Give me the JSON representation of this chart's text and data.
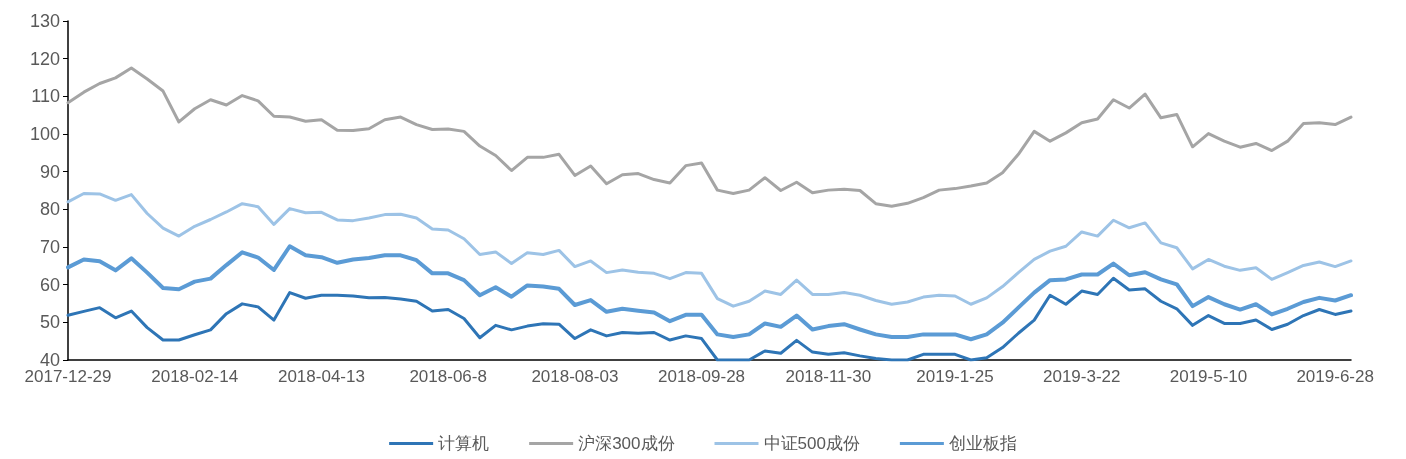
{
  "chart_data": {
    "type": "line",
    "categories": [
      "2017-12-29",
      null,
      null,
      null,
      null,
      null,
      null,
      null,
      "2018-02-14",
      null,
      null,
      null,
      null,
      null,
      null,
      null,
      "2018-04-13",
      null,
      null,
      null,
      null,
      null,
      null,
      null,
      "2018-06-8",
      null,
      null,
      null,
      null,
      null,
      null,
      null,
      "2018-08-03",
      null,
      null,
      null,
      null,
      null,
      null,
      null,
      "2018-09-28",
      null,
      null,
      null,
      null,
      null,
      null,
      null,
      "2018-11-30",
      null,
      null,
      null,
      null,
      null,
      null,
      null,
      "2019-1-25",
      null,
      null,
      null,
      null,
      null,
      null,
      null,
      "2019-3-22",
      null,
      null,
      null,
      null,
      null,
      null,
      null,
      "2019-5-10",
      null,
      null,
      null,
      null,
      null,
      null,
      null,
      "2019-6-28",
      null
    ],
    "series": [
      {
        "name": "计算机",
        "color": "#2e75b6",
        "values": [
          51.9,
          52.9,
          53.9,
          51.2,
          53.0,
          48.6,
          45.3,
          45.3,
          46.7,
          48.0,
          52.3,
          54.9,
          54.1,
          50.6,
          57.9,
          56.4,
          57.2,
          57.2,
          57.0,
          56.5,
          56.6,
          56.2,
          55.6,
          53.0,
          53.4,
          51.0,
          45.9,
          49.2,
          48.0,
          49.0,
          49.6,
          49.5,
          45.7,
          48.0,
          46.4,
          47.3,
          47.1,
          47.3,
          45.3,
          46.4,
          45.7,
          40,
          40,
          40,
          42.4,
          41.8,
          45.2,
          42.1,
          41.5,
          41.9,
          41.1,
          40.4,
          40,
          40,
          41.5,
          41.5,
          41.5,
          40,
          40.6,
          43.3,
          47.1,
          50.6,
          57.2,
          54.8,
          58.3,
          57.4,
          61.7,
          58.6,
          58.9,
          55.6,
          53.6,
          49.2,
          51.8,
          49.7,
          49.7,
          50.6,
          48.1,
          49.5,
          51.8,
          53.4,
          52.1,
          53.0
        ]
      },
      {
        "name": "沪深300成份",
        "color": "#a5a5a5",
        "values": [
          108.3,
          111.1,
          113.4,
          114.9,
          117.5,
          114.6,
          111.4,
          103.2,
          106.7,
          109.1,
          107.7,
          110.2,
          108.8,
          104.7,
          104.5,
          103.4,
          103.8,
          101.0,
          100.9,
          101.4,
          103.8,
          104.5,
          102.5,
          101.2,
          101.3,
          100.7,
          96.8,
          94.3,
          90.3,
          93.8,
          93.8,
          94.6,
          89.0,
          91.5,
          86.8,
          89.2,
          89.5,
          87.9,
          87.0,
          91.6,
          92.3,
          85.1,
          84.2,
          85.1,
          88.4,
          85.0,
          87.2,
          84.4,
          85.1,
          85.3,
          85.0,
          81.5,
          80.8,
          81.6,
          83.1,
          85.1,
          85.5,
          86.2,
          87.0,
          89.7,
          94.6,
          100.7,
          98.1,
          100.3,
          103.0,
          104.0,
          109.1,
          106.9,
          110.6,
          104.3,
          105.2,
          96.6,
          100.1,
          98.1,
          96.5,
          97.5,
          95.6,
          98.1,
          102.8,
          103.0,
          102.5,
          104.5
        ]
      },
      {
        "name": "中证500成份",
        "color": "#9dc3e6",
        "values": [
          82.0,
          84.2,
          84.1,
          82.4,
          83.9,
          78.9,
          75.0,
          72.9,
          75.5,
          77.3,
          79.3,
          81.5,
          80.7,
          76.0,
          80.2,
          79.1,
          79.2,
          77.2,
          77.0,
          77.7,
          78.6,
          78.7,
          77.7,
          74.8,
          74.5,
          72.2,
          68.0,
          68.7,
          65.6,
          68.5,
          68.0,
          69.1,
          64.8,
          66.3,
          63.2,
          63.9,
          63.3,
          63.0,
          61.6,
          63.2,
          63.0,
          56.3,
          54.3,
          55.6,
          58.3,
          57.4,
          61.2,
          57.4,
          57.4,
          57.9,
          57.2,
          55.8,
          54.8,
          55.4,
          56.7,
          57.2,
          57.0,
          54.8,
          56.5,
          59.5,
          63.2,
          66.7,
          68.9,
          70.2,
          74.0,
          72.9,
          77.1,
          75.1,
          76.4,
          71.1,
          69.8,
          64.2,
          66.7,
          64.9,
          63.8,
          64.5,
          61.4,
          63.2,
          65.1,
          66.0,
          64.8,
          66.3
        ]
      },
      {
        "name": "创业板指",
        "color": "#5b9bd5",
        "values": [
          64.6,
          66.7,
          66.2,
          63.8,
          67.0,
          63.2,
          59.1,
          58.8,
          60.8,
          61.6,
          65.2,
          68.6,
          67.2,
          63.9,
          70.2,
          67.8,
          67.3,
          65.8,
          66.7,
          67.1,
          67.8,
          67.8,
          66.5,
          63.0,
          63.0,
          61.2,
          57.2,
          59.3,
          56.8,
          59.8,
          59.5,
          58.9,
          54.6,
          55.9,
          52.8,
          53.6,
          53.1,
          52.6,
          50.3,
          52.0,
          52.0,
          46.8,
          46.1,
          46.8,
          49.7,
          48.8,
          51.8,
          48.1,
          49.0,
          49.5,
          48.1,
          46.8,
          46.1,
          46.1,
          46.8,
          46.8,
          46.8,
          45.5,
          46.8,
          49.9,
          53.9,
          57.9,
          61.2,
          61.4,
          62.7,
          62.7,
          65.6,
          62.5,
          63.3,
          61.4,
          60.1,
          54.3,
          56.7,
          54.8,
          53.4,
          54.8,
          52.1,
          53.6,
          55.4,
          56.5,
          55.8,
          57.2
        ]
      }
    ],
    "ylim": [
      40,
      130
    ],
    "yticks": [
      40,
      50,
      60,
      70,
      80,
      90,
      100,
      110,
      120,
      130
    ],
    "grid": false,
    "legend": "bottom",
    "marker": "none",
    "line_style": "solid"
  }
}
